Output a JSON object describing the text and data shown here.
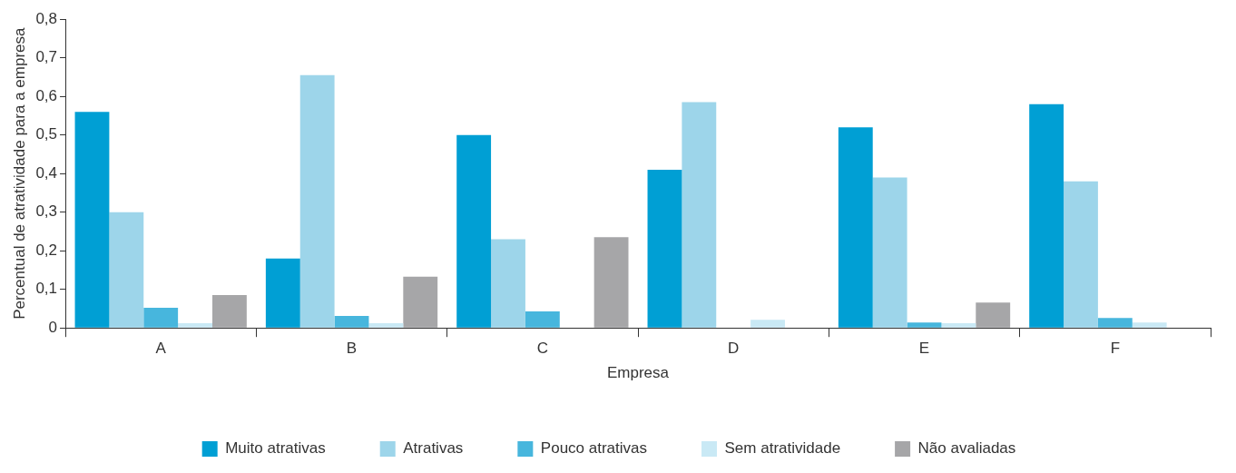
{
  "chart_data": {
    "type": "bar",
    "xlabel": "Empresa",
    "ylabel": "Percentual de atratividade para a empresa",
    "categories": [
      "A",
      "B",
      "C",
      "D",
      "E",
      "F"
    ],
    "series": [
      {
        "name": "Muito atrativas",
        "color": "#009fd4",
        "values": [
          0.56,
          0.18,
          0.5,
          0.41,
          0.52,
          0.58
        ]
      },
      {
        "name": "Atrativas",
        "color": "#9dd5ea",
        "values": [
          0.3,
          0.655,
          0.23,
          0.585,
          0.39,
          0.38
        ]
      },
      {
        "name": "Pouco atrativas",
        "color": "#47b6dd",
        "values": [
          0.052,
          0.031,
          0.043,
          0,
          0.014,
          0.026
        ]
      },
      {
        "name": "Sem atratividade",
        "color": "#c9e9f5",
        "values": [
          0.012,
          0.012,
          0,
          0.021,
          0.012,
          0.014
        ]
      },
      {
        "name": "Não avaliadas",
        "color": "#a6a6a8",
        "values": [
          0.085,
          0.133,
          0.235,
          0,
          0.066,
          0
        ]
      }
    ],
    "ylim": [
      0,
      0.8
    ],
    "yticks": [
      {
        "value": 0,
        "label": "0"
      },
      {
        "value": 0.1,
        "label": "0,1"
      },
      {
        "value": 0.2,
        "label": "0,2"
      },
      {
        "value": 0.3,
        "label": "0,3"
      },
      {
        "value": 0.4,
        "label": "0,4"
      },
      {
        "value": 0.5,
        "label": "0,5"
      },
      {
        "value": 0.6,
        "label": "0,6"
      },
      {
        "value": 0.7,
        "label": "0,7"
      },
      {
        "value": 0.8,
        "label": "0,8"
      }
    ],
    "grid": false,
    "legend": "bottom"
  }
}
